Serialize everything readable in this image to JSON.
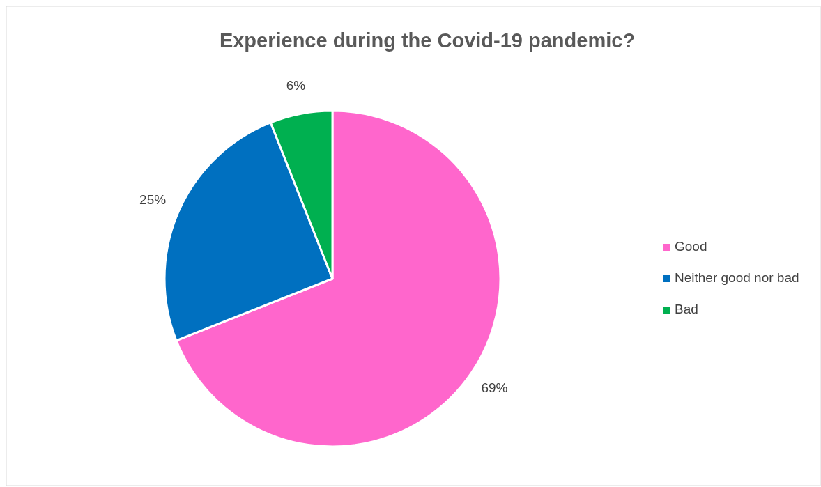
{
  "chart_data": {
    "type": "pie",
    "title": "Experience during the Covid-19 pandemic?",
    "categories": [
      "Good",
      "Neither good nor bad",
      "Bad"
    ],
    "values": [
      69,
      25,
      6
    ],
    "colors": [
      "#ff66cc",
      "#0070c0",
      "#00b050"
    ],
    "value_labels": [
      "69%",
      "25%",
      "6%"
    ],
    "legend": "right"
  }
}
